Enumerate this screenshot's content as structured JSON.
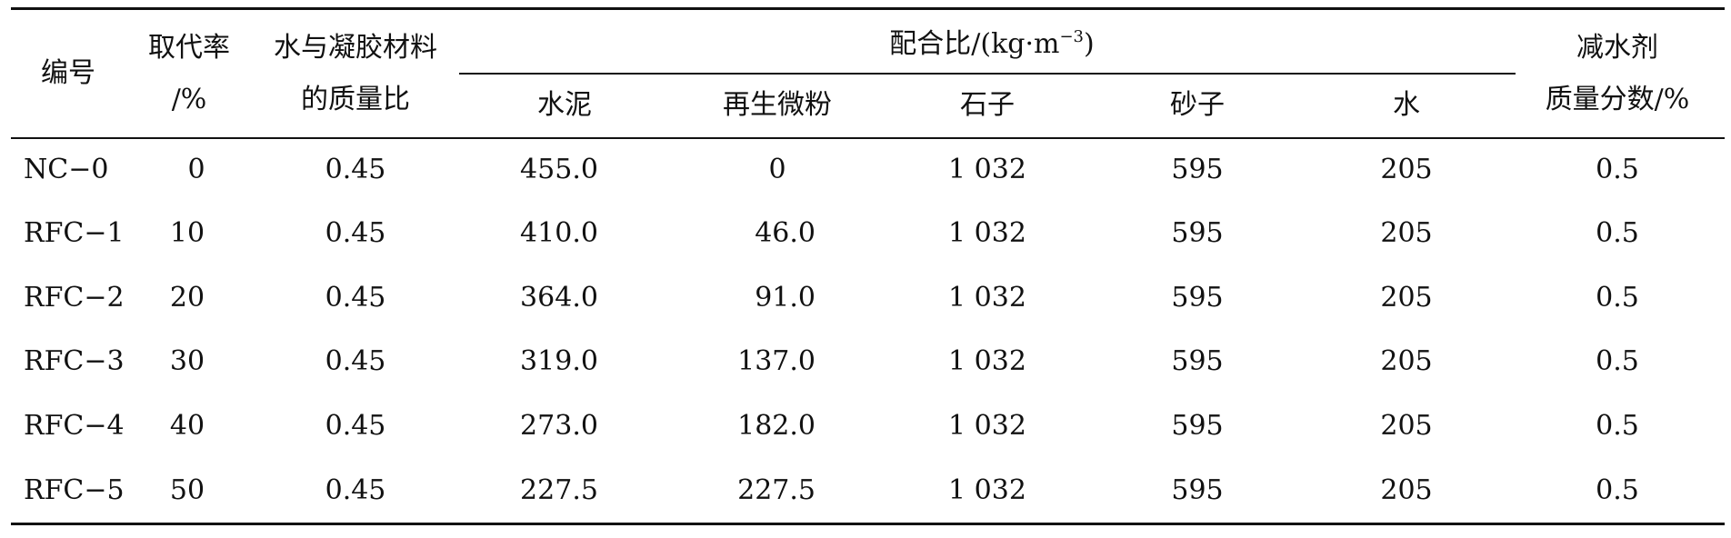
{
  "table": {
    "headers": {
      "id": "编号",
      "replace_rate_1": "取代率",
      "replace_rate_2": "/%",
      "wc_ratio_1": "水与凝胶材料",
      "wc_ratio_2": "的质量比",
      "mix_group_prefix": "配合比/(kg·m",
      "mix_group_sup": "−3",
      "mix_group_suffix": ")",
      "cement": "水泥",
      "recycled_powder": "再生微粉",
      "stone": "石子",
      "sand": "砂子",
      "water": "水",
      "reducer_1": "减水剂",
      "reducer_2": "质量分数/%"
    },
    "rows": [
      {
        "id": "NC−0",
        "rate": "0",
        "wc": "0.45",
        "cement": "455.0",
        "powder": "0",
        "stone": "1 032",
        "sand": "595",
        "water": "205",
        "reducer": "0.5"
      },
      {
        "id": "RFC−1",
        "rate": "10",
        "wc": "0.45",
        "cement": "410.0",
        "powder": "46.0",
        "stone": "1 032",
        "sand": "595",
        "water": "205",
        "reducer": "0.5"
      },
      {
        "id": "RFC−2",
        "rate": "20",
        "wc": "0.45",
        "cement": "364.0",
        "powder": "91.0",
        "stone": "1 032",
        "sand": "595",
        "water": "205",
        "reducer": "0.5"
      },
      {
        "id": "RFC−3",
        "rate": "30",
        "wc": "0.45",
        "cement": "319.0",
        "powder": "137.0",
        "stone": "1 032",
        "sand": "595",
        "water": "205",
        "reducer": "0.5"
      },
      {
        "id": "RFC−4",
        "rate": "40",
        "wc": "0.45",
        "cement": "273.0",
        "powder": "182.0",
        "stone": "1 032",
        "sand": "595",
        "water": "205",
        "reducer": "0.5"
      },
      {
        "id": "RFC−5",
        "rate": "50",
        "wc": "0.45",
        "cement": "227.5",
        "powder": "227.5",
        "stone": "1 032",
        "sand": "595",
        "water": "205",
        "reducer": "0.5"
      }
    ]
  }
}
